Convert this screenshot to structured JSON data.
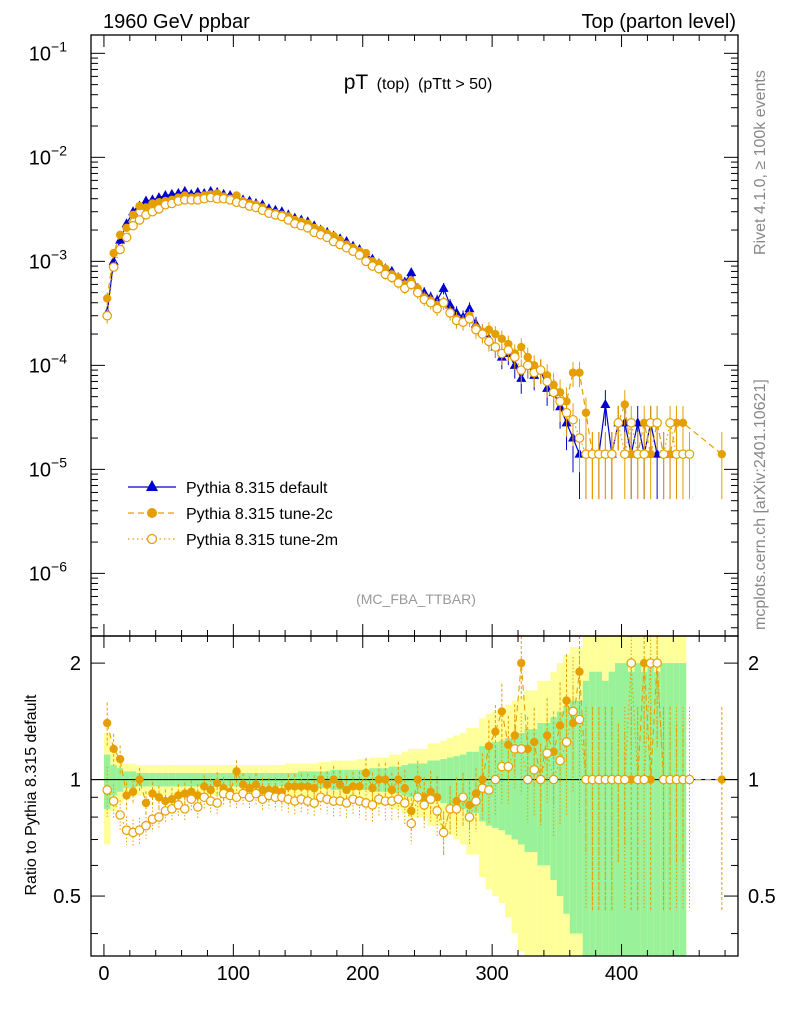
{
  "header": {
    "left": "1960 GeV ppbar",
    "right": "Top (parton level)"
  },
  "side": {
    "rivet": "Rivet 4.1.0, ≥ 100k events",
    "source": "mcplots.cern.ch [arXiv:2401.10621]"
  },
  "chart_data": {
    "type": "line",
    "title": {
      "main": "pT",
      "paren1": "(top)",
      "paren2": "(pTtt > 50)"
    },
    "watermark": "(MC_FBA_TTBAR)",
    "xlabel": "",
    "ylabel": "",
    "ratio_ylabel": "Ratio to Pythia 8.315 default",
    "xlim": [
      -10,
      490
    ],
    "ylim_log": [
      2.5e-07,
      0.15
    ],
    "ratio_ylim": [
      0.35,
      2.35
    ],
    "x_ticks": [
      "0",
      "100",
      "200",
      "300",
      "400"
    ],
    "y_ticks": [
      {
        "base": "10",
        "exp": "−1"
      },
      {
        "base": "10",
        "exp": "−2"
      },
      {
        "base": "10",
        "exp": "−3"
      },
      {
        "base": "10",
        "exp": "−4"
      },
      {
        "base": "10",
        "exp": "−5"
      },
      {
        "base": "10",
        "exp": "−6"
      }
    ],
    "ratio_ticks": [
      "0.5",
      "1",
      "2"
    ],
    "legend_position": "bottom-left",
    "series": [
      {
        "name": "Pythia 8.315 default",
        "color": "#0000cc",
        "style": "solid",
        "marker": "triangle",
        "x": [
          2.5,
          7.5,
          12.5,
          17.5,
          22.5,
          27.5,
          32.5,
          37.5,
          42.5,
          47.5,
          52.5,
          57.5,
          62.5,
          67.5,
          72.5,
          77.5,
          82.5,
          87.5,
          92.5,
          97.5,
          102.5,
          107.5,
          112.5,
          117.5,
          122.5,
          127.5,
          132.5,
          137.5,
          142.5,
          147.5,
          152.5,
          157.5,
          162.5,
          167.5,
          172.5,
          177.5,
          182.5,
          187.5,
          192.5,
          197.5,
          202.5,
          207.5,
          212.5,
          217.5,
          222.5,
          227.5,
          232.5,
          237.5,
          242.5,
          247.5,
          252.5,
          257.5,
          262.5,
          267.5,
          272.5,
          277.5,
          282.5,
          287.5,
          292.5,
          297.5,
          302.5,
          307.5,
          312.5,
          317.5,
          322.5,
          327.5,
          332.5,
          337.5,
          342.5,
          347.5,
          352.5,
          357.5,
          362.5,
          367.5,
          372.5,
          377.5,
          382.5,
          387.5,
          392.5,
          397.5,
          402.5,
          407.5,
          412.5,
          417.5,
          422.5,
          427.5,
          432.5,
          437.5,
          442.5,
          447.5
        ],
        "values": [
          0.00032,
          0.001,
          0.0016,
          0.0023,
          0.003,
          0.0034,
          0.0038,
          0.0039,
          0.0041,
          0.0043,
          0.0044,
          0.0045,
          0.0047,
          0.0044,
          0.0046,
          0.0045,
          0.0047,
          0.0046,
          0.0044,
          0.0043,
          0.0041,
          0.0039,
          0.0038,
          0.0036,
          0.0035,
          0.0032,
          0.0031,
          0.003,
          0.0028,
          0.0026,
          0.0025,
          0.0024,
          0.0022,
          0.002,
          0.0019,
          0.00175,
          0.00165,
          0.00155,
          0.0014,
          0.0013,
          0.00115,
          0.00105,
          0.00095,
          0.00085,
          0.0008,
          0.0007,
          0.00063,
          0.00078,
          0.00055,
          0.0005,
          0.00045,
          0.00042,
          0.00055,
          0.00038,
          0.00032,
          0.00029,
          0.00035,
          0.00025,
          0.00021,
          0.00018,
          0.00015,
          0.00012,
          0.00013,
          0.0001,
          7.5e-05,
          0.0001,
          8e-05,
          9e-05,
          6e-05,
          5.5e-05,
          4e-05,
          2.8e-05,
          2e-05,
          1.4e-05,
          1.4e-05,
          1.4e-05,
          1.4e-05,
          4.2e-05,
          1.4e-05,
          2.8e-05,
          2.8e-05,
          1.4e-05,
          2.8e-05,
          1.4e-05,
          2.8e-05,
          1.4e-05,
          1.4e-05,
          1.4e-05,
          1.4e-05,
          1.4e-05
        ],
        "ratio_band_inner": [
          0.16,
          0.09,
          0.07,
          0.05,
          0.05,
          0.04,
          0.04,
          0.04,
          0.04,
          0.04,
          0.04,
          0.04,
          0.04,
          0.04,
          0.04,
          0.04,
          0.04,
          0.04,
          0.04,
          0.04,
          0.04,
          0.04,
          0.04,
          0.04,
          0.04,
          0.04,
          0.04,
          0.04,
          0.04,
          0.04,
          0.05,
          0.05,
          0.05,
          0.05,
          0.05,
          0.06,
          0.06,
          0.06,
          0.06,
          0.06,
          0.06,
          0.07,
          0.07,
          0.07,
          0.08,
          0.08,
          0.09,
          0.1,
          0.1,
          0.1,
          0.12,
          0.12,
          0.13,
          0.14,
          0.15,
          0.16,
          0.18,
          0.18,
          0.22,
          0.24,
          0.25,
          0.26,
          0.28,
          0.3,
          0.32,
          0.35,
          0.35,
          0.4,
          0.4,
          0.45,
          0.5,
          0.55,
          0.6,
          0.6,
          0.8,
          0.9,
          0.9,
          0.8,
          0.9,
          1.0,
          1.0,
          0.9,
          1.0,
          0.9,
          1.0,
          0.9,
          1.0,
          1.0,
          1.0,
          1.0
        ],
        "ratio_band_outer": [
          0.32,
          0.17,
          0.13,
          0.1,
          0.1,
          0.09,
          0.09,
          0.09,
          0.09,
          0.09,
          0.09,
          0.09,
          0.09,
          0.09,
          0.09,
          0.09,
          0.09,
          0.09,
          0.09,
          0.09,
          0.09,
          0.09,
          0.09,
          0.09,
          0.09,
          0.09,
          0.09,
          0.09,
          0.1,
          0.1,
          0.1,
          0.1,
          0.1,
          0.11,
          0.11,
          0.12,
          0.12,
          0.12,
          0.12,
          0.13,
          0.13,
          0.14,
          0.14,
          0.14,
          0.16,
          0.16,
          0.18,
          0.2,
          0.2,
          0.2,
          0.24,
          0.24,
          0.26,
          0.28,
          0.3,
          0.32,
          0.36,
          0.36,
          0.44,
          0.48,
          0.5,
          0.52,
          0.56,
          0.6,
          0.64,
          0.7,
          0.7,
          0.8,
          0.8,
          0.9,
          1.0,
          1.1,
          1.2,
          1.2,
          1.6,
          1.8,
          1.8,
          1.6,
          1.8,
          2.0,
          2.0,
          1.8,
          2.0,
          1.8,
          2.0,
          1.8,
          2.0,
          2.0,
          2.0,
          2.0
        ]
      },
      {
        "name": "Pythia 8.315 tune-2c",
        "color": "#e69f00",
        "style": "dashed",
        "marker": "filled-circle",
        "x": [
          2.5,
          7.5,
          12.5,
          17.5,
          22.5,
          27.5,
          32.5,
          37.5,
          42.5,
          47.5,
          52.5,
          57.5,
          62.5,
          67.5,
          72.5,
          77.5,
          82.5,
          87.5,
          92.5,
          97.5,
          102.5,
          107.5,
          112.5,
          117.5,
          122.5,
          127.5,
          132.5,
          137.5,
          142.5,
          147.5,
          152.5,
          157.5,
          162.5,
          167.5,
          172.5,
          177.5,
          182.5,
          187.5,
          192.5,
          197.5,
          202.5,
          207.5,
          212.5,
          217.5,
          222.5,
          227.5,
          232.5,
          237.5,
          242.5,
          247.5,
          252.5,
          257.5,
          262.5,
          267.5,
          272.5,
          277.5,
          282.5,
          287.5,
          292.5,
          297.5,
          302.5,
          307.5,
          312.5,
          317.5,
          322.5,
          327.5,
          332.5,
          337.5,
          342.5,
          347.5,
          352.5,
          357.5,
          362.5,
          367.5,
          372.5,
          377.5,
          382.5,
          387.5,
          392.5,
          397.5,
          402.5,
          407.5,
          412.5,
          417.5,
          422.5,
          427.5,
          432.5,
          437.5,
          442.5,
          447.5,
          477.5
        ],
        "values": [
          0.00044,
          0.0012,
          0.0018,
          0.0021,
          0.0028,
          0.0034,
          0.0033,
          0.0036,
          0.0037,
          0.0038,
          0.0039,
          0.0041,
          0.0043,
          0.0041,
          0.0042,
          0.0043,
          0.0044,
          0.0045,
          0.0042,
          0.004,
          0.0043,
          0.0038,
          0.0036,
          0.0035,
          0.0033,
          0.003,
          0.0029,
          0.0028,
          0.0027,
          0.0025,
          0.0024,
          0.0023,
          0.0021,
          0.002,
          0.00185,
          0.00175,
          0.0016,
          0.00145,
          0.00135,
          0.00125,
          0.0012,
          0.001,
          0.00095,
          0.00085,
          0.00075,
          0.0007,
          0.0006,
          0.00065,
          0.00055,
          0.00045,
          0.00042,
          0.00038,
          0.0004,
          0.00032,
          0.00028,
          0.00026,
          0.0003,
          0.00023,
          0.00021,
          0.00022,
          0.0002,
          0.00018,
          0.00016,
          0.00013,
          0.00015,
          0.00012,
          0.0001,
          9e-05,
          8e-05,
          6.5e-05,
          5.5e-05,
          4.5e-05,
          8.5e-05,
          8.5e-05,
          3.5e-05,
          1.4e-05,
          1.4e-05,
          1.4e-05,
          1.4e-05,
          2.8e-05,
          4.2e-05,
          1.4e-05,
          1.4e-05,
          2.8e-05,
          1.4e-05,
          2.8e-05,
          1.4e-05,
          1.4e-05,
          2.8e-05,
          2.8e-05,
          1.4e-05
        ],
        "ratio": [
          1.4,
          1.2,
          1.13,
          0.91,
          0.93,
          1.0,
          0.87,
          0.92,
          0.9,
          0.88,
          0.89,
          0.91,
          0.92,
          0.93,
          0.91,
          0.96,
          0.94,
          0.98,
          0.95,
          0.93,
          1.05,
          0.97,
          0.95,
          0.97,
          0.94,
          0.94,
          0.94,
          0.93,
          0.96,
          0.96,
          0.96,
          0.96,
          0.95,
          1.0,
          0.97,
          1.0,
          0.97,
          0.94,
          0.96,
          0.96,
          1.04,
          0.95,
          1.0,
          1.0,
          0.94,
          1.0,
          0.95,
          0.83,
          1.0,
          0.9,
          0.93,
          0.9,
          0.73,
          0.84,
          0.88,
          0.9,
          0.86,
          0.92,
          1.0,
          1.22,
          1.33,
          1.5,
          1.23,
          1.3,
          2.0,
          1.2,
          1.25,
          1.0,
          1.3,
          1.18,
          1.38,
          1.6,
          1.4,
          1.9,
          1.0,
          1.0,
          1.0,
          1.0,
          1.0,
          1.0,
          1.0,
          1.0,
          1.0,
          2.0,
          1.0,
          2.0,
          1.0,
          1.0,
          1.0,
          1.0,
          1.0
        ]
      },
      {
        "name": "Pythia 8.315 tune-2m",
        "color": "#e69f00",
        "style": "dotted",
        "marker": "open-circle",
        "x": [
          2.5,
          7.5,
          12.5,
          17.5,
          22.5,
          27.5,
          32.5,
          37.5,
          42.5,
          47.5,
          52.5,
          57.5,
          62.5,
          67.5,
          72.5,
          77.5,
          82.5,
          87.5,
          92.5,
          97.5,
          102.5,
          107.5,
          112.5,
          117.5,
          122.5,
          127.5,
          132.5,
          137.5,
          142.5,
          147.5,
          152.5,
          157.5,
          162.5,
          167.5,
          172.5,
          177.5,
          182.5,
          187.5,
          192.5,
          197.5,
          202.5,
          207.5,
          212.5,
          217.5,
          222.5,
          227.5,
          232.5,
          237.5,
          242.5,
          247.5,
          252.5,
          257.5,
          262.5,
          267.5,
          272.5,
          277.5,
          282.5,
          287.5,
          292.5,
          297.5,
          302.5,
          307.5,
          312.5,
          317.5,
          322.5,
          327.5,
          332.5,
          337.5,
          342.5,
          347.5,
          352.5,
          357.5,
          362.5,
          367.5,
          372.5,
          377.5,
          382.5,
          387.5,
          392.5,
          397.5,
          402.5,
          407.5,
          412.5,
          417.5,
          422.5,
          427.5,
          432.5,
          437.5,
          442.5,
          447.5,
          452.5
        ],
        "values": [
          0.0003,
          0.00088,
          0.0013,
          0.0017,
          0.0022,
          0.0025,
          0.0028,
          0.003,
          0.0032,
          0.0035,
          0.0036,
          0.0038,
          0.0039,
          0.0039,
          0.0039,
          0.004,
          0.0041,
          0.004,
          0.004,
          0.0039,
          0.0037,
          0.0036,
          0.0034,
          0.0033,
          0.0031,
          0.0029,
          0.0028,
          0.0027,
          0.0025,
          0.0023,
          0.0022,
          0.0021,
          0.0019,
          0.0018,
          0.0017,
          0.00155,
          0.00145,
          0.00135,
          0.00125,
          0.00115,
          0.001,
          0.0009,
          0.00085,
          0.00075,
          0.0007,
          0.00062,
          0.00055,
          0.0006,
          0.0005,
          0.00043,
          0.0004,
          0.00035,
          0.0004,
          0.00032,
          0.00027,
          0.00026,
          0.00028,
          0.00022,
          0.0002,
          0.00017,
          0.00015,
          0.00013,
          0.00014,
          0.00012,
          9e-05,
          0.0001,
          8.5e-05,
          9e-05,
          7e-05,
          5.5e-05,
          4.5e-05,
          3.5e-05,
          3e-05,
          2e-05,
          1.4e-05,
          1.4e-05,
          1.4e-05,
          1.4e-05,
          1.4e-05,
          2.8e-05,
          1.4e-05,
          2.8e-05,
          1.4e-05,
          1.4e-05,
          2.8e-05,
          2.8e-05,
          1.4e-05,
          2.8e-05,
          1.4e-05,
          1.4e-05,
          1.4e-05
        ],
        "ratio": [
          0.94,
          0.88,
          0.81,
          0.74,
          0.73,
          0.74,
          0.76,
          0.79,
          0.8,
          0.83,
          0.84,
          0.86,
          0.84,
          0.89,
          0.85,
          0.9,
          0.88,
          0.87,
          0.92,
          0.91,
          0.9,
          0.92,
          0.9,
          0.92,
          0.89,
          0.91,
          0.9,
          0.9,
          0.89,
          0.88,
          0.89,
          0.88,
          0.87,
          0.9,
          0.89,
          0.88,
          0.88,
          0.87,
          0.89,
          0.88,
          0.87,
          0.86,
          0.89,
          0.88,
          0.88,
          0.89,
          0.87,
          0.77,
          0.9,
          0.86,
          0.89,
          0.83,
          0.73,
          0.84,
          0.84,
          0.9,
          0.8,
          0.88,
          0.95,
          0.94,
          1.0,
          1.08,
          1.08,
          1.2,
          1.2,
          1.0,
          1.06,
          1.0,
          1.17,
          1.0,
          1.12,
          1.25,
          1.5,
          1.43,
          1.0,
          1.0,
          1.0,
          1.0,
          1.0,
          1.0,
          1.0,
          2.0,
          1.0,
          1.0,
          2.0,
          2.0,
          1.0,
          1.0,
          1.0,
          1.0,
          1.0
        ]
      }
    ]
  }
}
